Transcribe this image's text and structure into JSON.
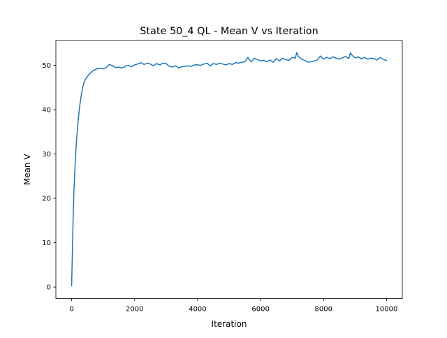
{
  "chart_data": {
    "type": "line",
    "title": "State 50_4 QL - Mean V vs Iteration",
    "xlabel": "Iteration",
    "ylabel": "Mean V",
    "xlim": [
      -500,
      10500
    ],
    "ylim": [
      -2.6,
      55.6
    ],
    "xticks": [
      0,
      2000,
      4000,
      6000,
      8000,
      10000
    ],
    "xtick_labels": [
      "0",
      "2000",
      "4000",
      "6000",
      "8000",
      "10000"
    ],
    "yticks": [
      0,
      10,
      20,
      30,
      40,
      50
    ],
    "ytick_labels": [
      "0",
      "10",
      "20",
      "30",
      "40",
      "50"
    ],
    "grid": false,
    "line_color": "#1f77b4",
    "series": [
      {
        "x": [
          0,
          25,
          50,
          75,
          100,
          150,
          200,
          250,
          300,
          350,
          400,
          450,
          500,
          600,
          700,
          800,
          900,
          1000,
          1100,
          1200,
          1300,
          1400,
          1500,
          1600,
          1700,
          1800,
          1900,
          2000,
          2100,
          2200,
          2300,
          2400,
          2500,
          2600,
          2700,
          2800,
          2900,
          3000,
          3100,
          3200,
          3300,
          3400,
          3500,
          3600,
          3700,
          3800,
          3900,
          4000,
          4100,
          4200,
          4300,
          4400,
          4500,
          4600,
          4700,
          4800,
          4900,
          5000,
          5100,
          5200,
          5300,
          5400,
          5500,
          5600,
          5650,
          5700,
          5800,
          5900,
          6000,
          6100,
          6200,
          6300,
          6400,
          6500,
          6600,
          6700,
          6800,
          6900,
          7000,
          7100,
          7150,
          7200,
          7300,
          7400,
          7500,
          7600,
          7700,
          7800,
          7900,
          7950,
          8000,
          8100,
          8200,
          8300,
          8400,
          8500,
          8600,
          8700,
          8800,
          8850,
          8900,
          9000,
          9100,
          9200,
          9300,
          9400,
          9500,
          9600,
          9700,
          9800,
          9900,
          10000
        ],
        "y": [
          0.3,
          8,
          16,
          22,
          26,
          32.5,
          37,
          40.5,
          43,
          45,
          46.3,
          47,
          47.5,
          48.3,
          48.9,
          49.2,
          49.3,
          49.2,
          49.5,
          50.2,
          49.9,
          49.5,
          49.6,
          49.4,
          49.8,
          50,
          49.7,
          50.1,
          50.3,
          50.6,
          50.2,
          50.5,
          50.3,
          49.9,
          50.4,
          50.1,
          50.5,
          50.4,
          49.8,
          49.6,
          49.9,
          49.4,
          49.7,
          49.8,
          49.9,
          49.8,
          50.1,
          50.1,
          50,
          50.3,
          50.5,
          49.9,
          50.4,
          50.2,
          50.5,
          50.3,
          50.1,
          50.4,
          50.2,
          50.6,
          50.5,
          50.7,
          50.8,
          51.8,
          51.2,
          50.8,
          51.6,
          51.3,
          51,
          51.1,
          50.8,
          51.2,
          50.7,
          51.5,
          51,
          51.6,
          51.3,
          51.1,
          51.8,
          51.6,
          52.9,
          52,
          51.4,
          51.1,
          50.7,
          50.8,
          51,
          51.2,
          52.1,
          51.7,
          51.4,
          51.8,
          51.5,
          51.9,
          51.6,
          51.4,
          51.7,
          52,
          51.5,
          52.8,
          52.3,
          51.7,
          51.9,
          51.5,
          51.8,
          51.4,
          51.6,
          51.5,
          51.2,
          51.8,
          51.3,
          51.1
        ]
      }
    ]
  }
}
